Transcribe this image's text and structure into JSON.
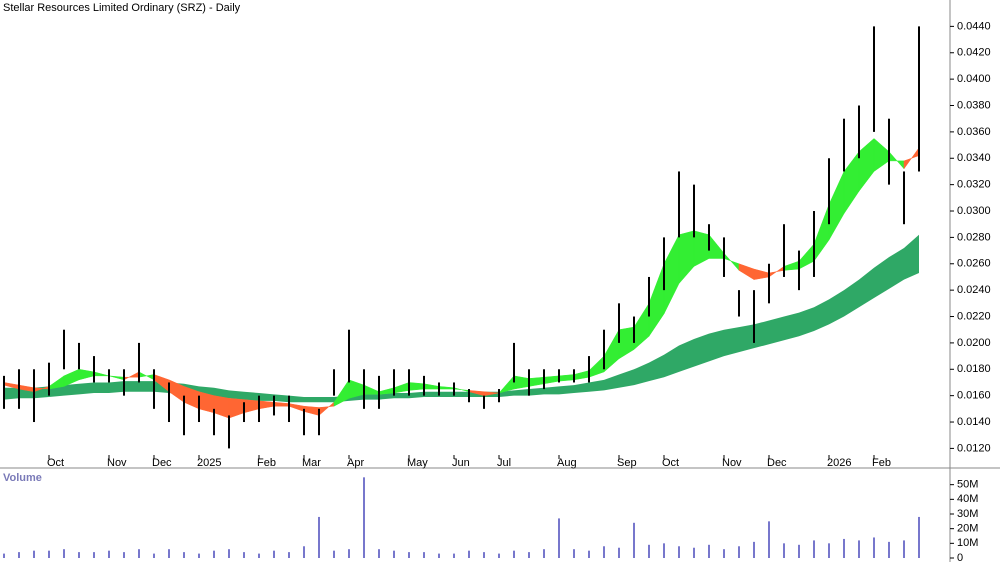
{
  "chart_data": [
    {
      "type": "range",
      "title": "Stellar Resources Limited Ordinary (SRZ) - Daily",
      "color": "#000000",
      "categories": [
        null,
        null,
        null,
        "Oct",
        null,
        null,
        null,
        "Nov",
        null,
        null,
        "Dec",
        null,
        null,
        "2025",
        null,
        null,
        null,
        "Feb",
        null,
        null,
        "Mar",
        null,
        null,
        "Apr",
        null,
        null,
        null,
        "May",
        null,
        null,
        "Jun",
        null,
        null,
        "Jul",
        null,
        null,
        null,
        "Aug",
        null,
        null,
        null,
        "Sep",
        null,
        null,
        "Oct",
        null,
        null,
        null,
        "Nov",
        null,
        null,
        "Dec",
        null,
        null,
        null,
        "2026",
        null,
        null,
        "Feb",
        null,
        null,
        null
      ],
      "high": [
        0.0175,
        0.018,
        0.018,
        0.0185,
        0.021,
        0.02,
        0.019,
        0.018,
        0.018,
        0.02,
        0.018,
        0.017,
        0.016,
        0.016,
        0.015,
        0.0145,
        0.0155,
        0.016,
        0.016,
        0.016,
        0.015,
        0.015,
        0.018,
        0.021,
        0.018,
        0.0175,
        0.018,
        0.018,
        0.0175,
        0.017,
        0.017,
        0.0165,
        0.016,
        0.0165,
        0.02,
        0.018,
        0.018,
        0.018,
        0.018,
        0.019,
        0.021,
        0.023,
        0.022,
        0.025,
        0.028,
        0.033,
        0.032,
        0.029,
        0.028,
        0.024,
        0.024,
        0.026,
        0.029,
        0.027,
        0.03,
        0.034,
        0.037,
        0.038,
        0.044,
        0.037,
        0.033,
        0.044
      ],
      "low": [
        0.015,
        0.015,
        0.014,
        0.016,
        0.018,
        0.018,
        0.017,
        0.017,
        0.016,
        0.017,
        0.015,
        0.014,
        0.013,
        0.014,
        0.013,
        0.012,
        0.014,
        0.014,
        0.0145,
        0.014,
        0.013,
        0.013,
        0.016,
        0.017,
        0.015,
        0.015,
        0.016,
        0.016,
        0.016,
        0.016,
        0.016,
        0.0155,
        0.015,
        0.0155,
        0.017,
        0.016,
        0.0165,
        0.017,
        0.017,
        0.017,
        0.018,
        0.02,
        0.02,
        0.022,
        0.024,
        0.028,
        0.028,
        0.027,
        0.025,
        0.022,
        0.02,
        0.023,
        0.025,
        0.024,
        0.025,
        0.029,
        0.033,
        0.034,
        0.036,
        0.032,
        0.029,
        0.033
      ],
      "bands": [
        {
          "up_color": "#33ee33",
          "down_color": "#ff6633",
          "fast": [
            0.0168,
            0.0165,
            0.0163,
            0.0167,
            0.0175,
            0.018,
            0.0178,
            0.0175,
            0.0172,
            0.0178,
            0.0172,
            0.0163,
            0.0155,
            0.015,
            0.0147,
            0.0143,
            0.0147,
            0.015,
            0.0152,
            0.0152,
            0.0148,
            0.0145,
            0.0155,
            0.0172,
            0.0168,
            0.0163,
            0.0166,
            0.017,
            0.0169,
            0.0167,
            0.0166,
            0.0163,
            0.016,
            0.0162,
            0.0175,
            0.0173,
            0.0174,
            0.0175,
            0.0176,
            0.0179,
            0.019,
            0.021,
            0.0212,
            0.023,
            0.026,
            0.0282,
            0.0285,
            0.0282,
            0.0268,
            0.0255,
            0.0248,
            0.025,
            0.0258,
            0.0262,
            0.0275,
            0.0305,
            0.033,
            0.0345,
            0.0355,
            0.0345,
            0.0332,
            0.0348
          ],
          "slow": [
            0.017,
            0.0168,
            0.0166,
            0.0165,
            0.0167,
            0.0172,
            0.0175,
            0.0175,
            0.0174,
            0.0174,
            0.0176,
            0.0172,
            0.0167,
            0.0163,
            0.016,
            0.0158,
            0.0157,
            0.0156,
            0.0155,
            0.0154,
            0.0152,
            0.0151,
            0.0152,
            0.0158,
            0.0161,
            0.0161,
            0.0162,
            0.0164,
            0.0165,
            0.0165,
            0.0165,
            0.0164,
            0.0163,
            0.0162,
            0.0165,
            0.0167,
            0.0169,
            0.0171,
            0.0172,
            0.0174,
            0.0178,
            0.0188,
            0.0195,
            0.0205,
            0.0222,
            0.0245,
            0.0258,
            0.0264,
            0.0264,
            0.026,
            0.0256,
            0.0253,
            0.0255,
            0.0256,
            0.0262,
            0.0278,
            0.0298,
            0.0315,
            0.033,
            0.0338,
            0.0338,
            0.0342
          ]
        },
        {
          "color": "#2fa866",
          "upper": [
            0.0166,
            0.0166,
            0.0166,
            0.0167,
            0.0168,
            0.0169,
            0.017,
            0.017,
            0.0171,
            0.0171,
            0.0171,
            0.017,
            0.0169,
            0.0167,
            0.0166,
            0.0164,
            0.0163,
            0.0162,
            0.0161,
            0.016,
            0.0159,
            0.0159,
            0.0159,
            0.016,
            0.0161,
            0.0161,
            0.0162,
            0.0162,
            0.0163,
            0.0163,
            0.0163,
            0.0163,
            0.0163,
            0.0163,
            0.0164,
            0.0165,
            0.0166,
            0.0167,
            0.0168,
            0.017,
            0.0172,
            0.0176,
            0.018,
            0.0185,
            0.0191,
            0.0198,
            0.0203,
            0.0207,
            0.021,
            0.0212,
            0.0214,
            0.0217,
            0.022,
            0.0223,
            0.0227,
            0.0233,
            0.024,
            0.0248,
            0.0257,
            0.0265,
            0.0272,
            0.0282
          ],
          "lower": [
            0.0157,
            0.0158,
            0.0158,
            0.0159,
            0.016,
            0.0161,
            0.0162,
            0.0162,
            0.0163,
            0.0163,
            0.0163,
            0.0162,
            0.0161,
            0.016,
            0.0159,
            0.0158,
            0.0157,
            0.0156,
            0.0156,
            0.0155,
            0.0155,
            0.0155,
            0.0155,
            0.0156,
            0.0157,
            0.0157,
            0.0158,
            0.0158,
            0.0159,
            0.0159,
            0.0159,
            0.0159,
            0.0159,
            0.0159,
            0.016,
            0.016,
            0.0161,
            0.0161,
            0.0162,
            0.0163,
            0.0164,
            0.0166,
            0.0168,
            0.0171,
            0.0174,
            0.0178,
            0.0182,
            0.0186,
            0.019,
            0.0193,
            0.0196,
            0.0199,
            0.0202,
            0.0205,
            0.0209,
            0.0214,
            0.022,
            0.0227,
            0.0234,
            0.0241,
            0.0248,
            0.0253
          ]
        }
      ],
      "ylim": [
        0.0115,
        0.046
      ],
      "yticks": [
        {
          "value": 0.012,
          "label": "0.0120"
        },
        {
          "value": 0.014,
          "label": "0.0140"
        },
        {
          "value": 0.016,
          "label": "0.0160"
        },
        {
          "value": 0.018,
          "label": "0.0180"
        },
        {
          "value": 0.02,
          "label": "0.0200"
        },
        {
          "value": 0.022,
          "label": "0.0220"
        },
        {
          "value": 0.024,
          "label": "0.0240"
        },
        {
          "value": 0.026,
          "label": "0.0260"
        },
        {
          "value": 0.028,
          "label": "0.0280"
        },
        {
          "value": 0.03,
          "label": "0.0300"
        },
        {
          "value": 0.032,
          "label": "0.0320"
        },
        {
          "value": 0.034,
          "label": "0.0340"
        },
        {
          "value": 0.036,
          "label": "0.0360"
        },
        {
          "value": 0.038,
          "label": "0.0380"
        },
        {
          "value": 0.04,
          "label": "0.0400"
        },
        {
          "value": 0.042,
          "label": "0.0420"
        },
        {
          "value": 0.044,
          "label": "0.0440"
        }
      ]
    },
    {
      "type": "bar",
      "title": "Volume",
      "color": "#7777cc",
      "values": [
        3000000,
        4000000,
        5000000,
        5000000,
        6000000,
        4000000,
        4000000,
        5000000,
        4000000,
        6000000,
        3000000,
        6000000,
        4000000,
        3000000,
        5000000,
        6000000,
        4000000,
        3000000,
        5000000,
        4000000,
        8000000,
        28000000,
        5000000,
        6000000,
        55000000,
        6000000,
        5000000,
        4000000,
        4000000,
        3000000,
        3000000,
        5000000,
        4000000,
        3000000,
        5000000,
        4000000,
        6000000,
        27000000,
        6000000,
        5000000,
        8000000,
        7000000,
        24000000,
        9000000,
        10000000,
        8000000,
        7000000,
        9000000,
        6000000,
        8000000,
        11000000,
        25000000,
        10000000,
        9000000,
        12000000,
        10000000,
        13000000,
        12000000,
        14000000,
        11000000,
        12000000,
        28000000
      ],
      "ylim": [
        0,
        60000000
      ],
      "yticks": [
        0,
        {
          "value": 10000000,
          "label": "10M"
        },
        {
          "value": 20000000,
          "label": "20M"
        },
        {
          "value": 30000000,
          "label": "30M"
        },
        {
          "value": 40000000,
          "label": "40M"
        },
        {
          "value": 50000000,
          "label": "50M"
        }
      ]
    }
  ]
}
